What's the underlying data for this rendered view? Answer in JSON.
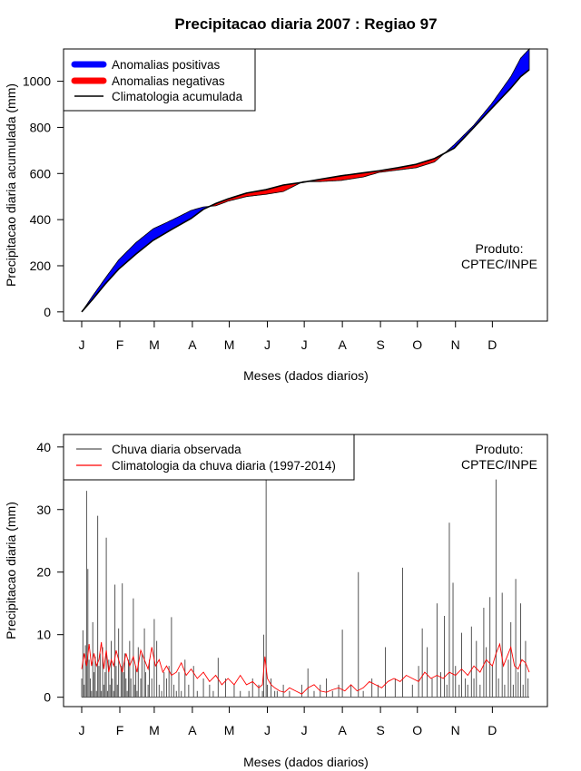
{
  "title": "Precipitacao diaria 2007 : Regiao 97",
  "product_note": [
    "Produto:",
    "CPTEC/INPE"
  ],
  "colors": {
    "positive_anomaly": "#0000ff",
    "negative_anomaly": "#ff0000",
    "climatology_line": "#000000",
    "observed_bars": "#555555",
    "climatology_daily": "#ff0000"
  },
  "chart_data": [
    {
      "type": "area",
      "id": "accumulated",
      "xlabel": "Meses (dados diarios)",
      "ylabel": "Precipitacao diaria acumulada (mm)",
      "month_ticks": [
        "J",
        "F",
        "M",
        "A",
        "M",
        "J",
        "J",
        "A",
        "S",
        "O",
        "N",
        "D"
      ],
      "xlim_day": [
        1,
        365
      ],
      "ylim": [
        -40,
        1140
      ],
      "yticks": [
        0,
        200,
        400,
        600,
        800,
        1000
      ],
      "legend_position": "top-left",
      "legend": [
        {
          "label": "Anomalias positivas",
          "kind": "thick",
          "color": "#0000ff"
        },
        {
          "label": "Anomalias negativas",
          "kind": "thick",
          "color": "#ff0000"
        },
        {
          "label": "Climatologia acumulada",
          "kind": "thin",
          "color": "#000000"
        }
      ],
      "days": [
        1,
        10,
        20,
        31,
        45,
        59,
        75,
        90,
        100,
        110,
        120,
        135,
        151,
        165,
        181,
        195,
        212,
        230,
        243,
        258,
        273,
        288,
        304,
        320,
        334,
        350,
        358,
        365
      ],
      "climatology_accum": [
        0,
        55,
        120,
        185,
        250,
        310,
        360,
        405,
        445,
        470,
        490,
        515,
        530,
        550,
        562,
        575,
        590,
        603,
        612,
        625,
        640,
        665,
        710,
        800,
        880,
        970,
        1020,
        1050
      ],
      "observed_accum": [
        0,
        70,
        145,
        225,
        300,
        360,
        400,
        440,
        455,
        460,
        480,
        500,
        510,
        522,
        565,
        565,
        570,
        585,
        605,
        615,
        625,
        650,
        725,
        810,
        900,
        1020,
        1100,
        1140
      ]
    },
    {
      "type": "bar",
      "id": "daily",
      "xlabel": "Meses (dados diarios)",
      "ylabel": "Precipitacao diaria (mm)",
      "month_ticks": [
        "J",
        "F",
        "M",
        "A",
        "M",
        "J",
        "J",
        "A",
        "S",
        "O",
        "N",
        "D"
      ],
      "xlim_day": [
        1,
        365
      ],
      "ylim": [
        -1.5,
        42
      ],
      "yticks": [
        0,
        10,
        20,
        30,
        40
      ],
      "legend_position": "top-left",
      "legend": [
        {
          "label": "Chuva diaria observada",
          "kind": "thin",
          "color": "#555555"
        },
        {
          "label": "Climatologia da chuva diaria (1997-2014)",
          "kind": "thin",
          "color": "#ff0000"
        }
      ],
      "observed_days": [
        1,
        2,
        3,
        4,
        5,
        6,
        7,
        8,
        9,
        10,
        11,
        12,
        13,
        14,
        15,
        16,
        17,
        18,
        19,
        20,
        21,
        22,
        23,
        24,
        25,
        26,
        27,
        28,
        29,
        30,
        31,
        33,
        34,
        35,
        36,
        37,
        38,
        39,
        40,
        41,
        43,
        44,
        45,
        46,
        47,
        49,
        50,
        52,
        53,
        55,
        56,
        58,
        60,
        62,
        64,
        66,
        68,
        70,
        72,
        74,
        76,
        78,
        80,
        82,
        85,
        88,
        92,
        95,
        100,
        105,
        108,
        112,
        118,
        125,
        130,
        137,
        140,
        145,
        148,
        149,
        151,
        152,
        155,
        158,
        160,
        165,
        170,
        180,
        185,
        190,
        195,
        200,
        205,
        210,
        213,
        220,
        226,
        230,
        237,
        242,
        248,
        256,
        262,
        270,
        275,
        278,
        282,
        286,
        290,
        293,
        296,
        298,
        300,
        303,
        305,
        308,
        310,
        313,
        315,
        318,
        320,
        322,
        325,
        328,
        330,
        333,
        335,
        338,
        340,
        343,
        345,
        348,
        350,
        352,
        354,
        356,
        358,
        360,
        362,
        364
      ],
      "observed_values": [
        3,
        10.7,
        2,
        8.3,
        33,
        20.5,
        6,
        3,
        1,
        12,
        4,
        6.5,
        1,
        29,
        5,
        7,
        1,
        8,
        2,
        4,
        25.5,
        1,
        6,
        2,
        9,
        3,
        1,
        18,
        5,
        2,
        11,
        5,
        18.2,
        4,
        7,
        3,
        1,
        6,
        9,
        3,
        15.8,
        2,
        5,
        1,
        8,
        3,
        7,
        11,
        4,
        2,
        6,
        3,
        12.5,
        9,
        2,
        1,
        4,
        3,
        5,
        12.8,
        2,
        1,
        4,
        1,
        6,
        2,
        5,
        1,
        3,
        2,
        1,
        6.3,
        3,
        2,
        1,
        1,
        3,
        2,
        1,
        10,
        35,
        2,
        3,
        1,
        1,
        2,
        1,
        2,
        4.6,
        1,
        2,
        3,
        1,
        2,
        10.8,
        2,
        20,
        1,
        3,
        2,
        8,
        3,
        20.7,
        2,
        5,
        11,
        8,
        3,
        15,
        4,
        13,
        2,
        27.9,
        18.3,
        5,
        2,
        10.3,
        3,
        2,
        11.3,
        3,
        9,
        2,
        14.3,
        8,
        16,
        5,
        34.8,
        3,
        16.7,
        2,
        6,
        12,
        2,
        18.9,
        4,
        15,
        2,
        9,
        3,
        17.8,
        4,
        2,
        6.2,
        1
      ],
      "climatology_days": [
        1,
        3,
        5,
        7,
        9,
        11,
        13,
        15,
        17,
        19,
        21,
        23,
        25,
        27,
        29,
        31,
        34,
        37,
        40,
        43,
        46,
        49,
        52,
        55,
        58,
        61,
        64,
        67,
        70,
        74,
        78,
        82,
        86,
        90,
        95,
        100,
        105,
        110,
        115,
        120,
        125,
        130,
        135,
        140,
        145,
        148,
        150,
        152,
        155,
        158,
        162,
        166,
        170,
        175,
        180,
        185,
        190,
        195,
        200,
        205,
        210,
        215,
        220,
        225,
        230,
        235,
        240,
        245,
        250,
        255,
        260,
        265,
        270,
        275,
        280,
        285,
        290,
        295,
        300,
        305,
        310,
        315,
        320,
        325,
        330,
        335,
        338,
        341,
        344,
        347,
        350,
        353,
        356,
        359,
        362,
        365
      ],
      "climatology_values": [
        4.5,
        7,
        5,
        8.5,
        5,
        7,
        5,
        6,
        8.8,
        4.5,
        7.5,
        4,
        6,
        5,
        7.5,
        6,
        4,
        7,
        5,
        6.5,
        4,
        7.5,
        6,
        4.5,
        8,
        5,
        6,
        4,
        5,
        3.5,
        4,
        5.5,
        3.5,
        4.5,
        3,
        4,
        2.5,
        3.5,
        2,
        3,
        2,
        3.5,
        2,
        2.5,
        1.5,
        2,
        6.5,
        3,
        2,
        1.5,
        1,
        0.8,
        1.5,
        1,
        0.5,
        1.5,
        2,
        1,
        0.8,
        1.2,
        1.5,
        1,
        2,
        1,
        1.5,
        2.5,
        2,
        1.5,
        2.5,
        3,
        2.5,
        3.5,
        3,
        2.5,
        4,
        3,
        3.5,
        3,
        4,
        3.5,
        4.5,
        3.5,
        5,
        4,
        6,
        5,
        7,
        8.5,
        5,
        6.5,
        8,
        5,
        4.5,
        6,
        5.5,
        4
      ]
    }
  ]
}
